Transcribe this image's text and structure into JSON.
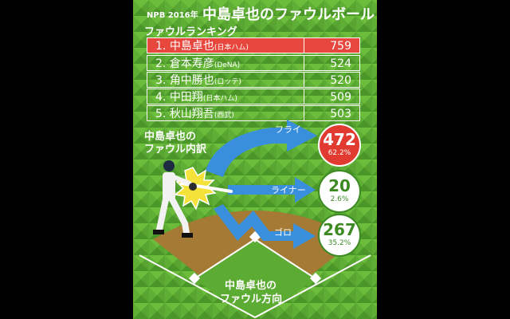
{
  "header": {
    "prefix": "NPB 2016年",
    "title": "中島卓也のファウルボール"
  },
  "ranking": {
    "title": "ファウルランキング",
    "rows": [
      {
        "rank": "1.",
        "name": "中島卓也",
        "team": "(日本ハム)",
        "value": "759",
        "highlight": true
      },
      {
        "rank": "2.",
        "name": "倉本寿彦",
        "team": "(DeNA)",
        "value": "524",
        "highlight": false
      },
      {
        "rank": "3.",
        "name": "角中勝也",
        "team": "(ロッテ)",
        "value": "520",
        "highlight": false
      },
      {
        "rank": "4.",
        "name": "中田翔",
        "team": "(日本ハム)",
        "value": "509",
        "highlight": false
      },
      {
        "rank": "5.",
        "name": "秋山翔吾",
        "team": "(西武)",
        "value": "503",
        "highlight": false
      }
    ]
  },
  "breakdown": {
    "title_line1": "中島卓也の",
    "title_line2": "ファウル内訳",
    "fly": {
      "label": "フライ",
      "count": "472",
      "percent": "62.2%"
    },
    "liner": {
      "label": "ライナー",
      "count": "20",
      "percent": "2.6%"
    },
    "grounder": {
      "label": "ゴロ",
      "count": "267",
      "percent": "35.2%"
    }
  },
  "field": {
    "line1": "中島卓也の",
    "line2": "ファウル方向"
  },
  "colors": {
    "grass_dark": "#3f8a2a",
    "grass_light": "#6fb93b",
    "highlight_red": "#e8473d",
    "arrow_blue": "#3a8fdc",
    "dirt": "#a77c3a",
    "fly_circle": "#e03a31",
    "badge_green_text": "#3d8a24"
  }
}
